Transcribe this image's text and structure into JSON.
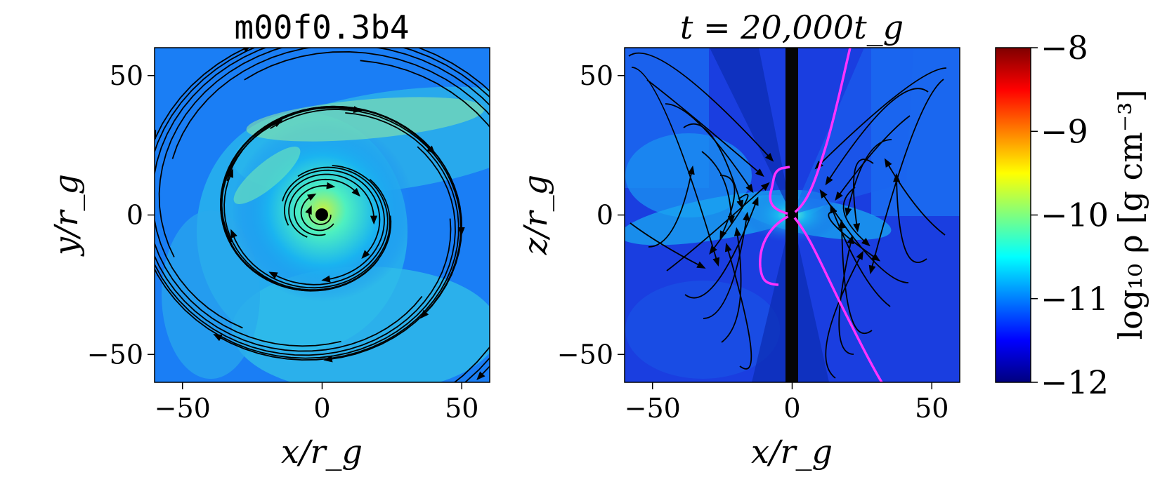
{
  "chart_data": [
    {
      "type": "heatmap",
      "title": "m00f0.3b4",
      "xlabel": "x/r_g",
      "ylabel": "y/r_g",
      "xlim": [
        -60,
        60
      ],
      "ylim": [
        -60,
        60
      ],
      "xticks": [
        -50,
        0,
        50
      ],
      "yticks": [
        -50,
        0,
        50
      ],
      "xtick_labels": [
        "−50",
        "0",
        "50"
      ],
      "ytick_labels": [
        "−50",
        "0",
        "50"
      ],
      "overlay": "streamlines",
      "black_hole_marker": [
        0,
        0
      ]
    },
    {
      "type": "heatmap",
      "title": "t = 20,000t_g",
      "xlabel": "x/r_g",
      "ylabel": "z/r_g",
      "xlim": [
        -60,
        60
      ],
      "ylim": [
        -60,
        60
      ],
      "xticks": [
        -50,
        0,
        50
      ],
      "yticks": [
        -50,
        0,
        50
      ],
      "xtick_labels": [
        "−50",
        "0",
        "50"
      ],
      "ytick_labels": [
        "−50",
        "0",
        "50"
      ],
      "overlay": "streamlines",
      "contour_color": "#ff33ff",
      "black_hole_marker": [
        0,
        0
      ]
    }
  ],
  "colorbar": {
    "label": "log₁₀ ρ [g cm⁻³]",
    "range": [
      -12,
      -8
    ],
    "ticks": [
      -8,
      -9,
      -10,
      -11,
      -12
    ],
    "tick_labels": [
      "−8",
      "−9",
      "−10",
      "−11",
      "−12"
    ],
    "colormap": "jet",
    "colors": [
      "#00007f",
      "#0000ff",
      "#007fff",
      "#00ffff",
      "#7fff7f",
      "#ffff00",
      "#ff7f00",
      "#ff0000",
      "#7f0000"
    ]
  }
}
